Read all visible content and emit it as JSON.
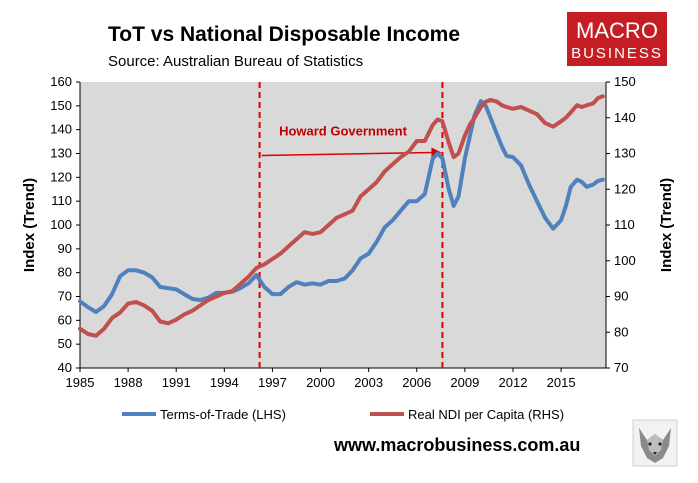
{
  "chart_data": {
    "type": "line",
    "title": "ToT vs National Disposable Income",
    "subtitle": "Source: Australian Bureau of Statistics",
    "ylabel_left": "Index (Trend)",
    "ylabel_right": "Index (Trend)",
    "xlim": [
      1985,
      2017.8
    ],
    "ylim_left": [
      40,
      160
    ],
    "ylim_right": [
      70,
      150
    ],
    "x_ticks": [
      "1985",
      "1988",
      "1991",
      "1994",
      "1997",
      "2000",
      "2003",
      "2006",
      "2009",
      "2012",
      "2015"
    ],
    "y_ticks_left": [
      "40",
      "50",
      "60",
      "70",
      "80",
      "90",
      "100",
      "110",
      "120",
      "130",
      "140",
      "150",
      "160"
    ],
    "y_ticks_right": [
      "70",
      "80",
      "90",
      "100",
      "110",
      "120",
      "130",
      "140",
      "150"
    ],
    "grid": false,
    "legend_position": "bottom",
    "series": [
      {
        "name": "Terms-of-Trade (LHS)",
        "axis": "left",
        "color": "#4f81bd",
        "x": [
          1985,
          1985.5,
          1986,
          1986.5,
          1987,
          1987.5,
          1988,
          1988.5,
          1989,
          1989.5,
          1990,
          1990.5,
          1991,
          1991.5,
          1992,
          1992.5,
          1993,
          1993.5,
          1994,
          1994.5,
          1995,
          1995.5,
          1996,
          1996.5,
          1997,
          1997.5,
          1998,
          1998.5,
          1999,
          1999.5,
          2000,
          2000.5,
          2001,
          2001.5,
          2002,
          2002.5,
          2003,
          2003.5,
          2004,
          2004.5,
          2005,
          2005.5,
          2006,
          2006.5,
          2007,
          2007.3,
          2007.6,
          2008,
          2008.3,
          2008.6,
          2009,
          2009.3,
          2009.6,
          2010,
          2010.3,
          2010.6,
          2011,
          2011.3,
          2011.6,
          2012,
          2012.5,
          2013,
          2013.5,
          2014,
          2014.5,
          2015,
          2015.3,
          2015.6,
          2016,
          2016.3,
          2016.6,
          2017,
          2017.3,
          2017.6
        ],
        "values": [
          68,
          65.5,
          63.5,
          66,
          71,
          78.5,
          81,
          81,
          80,
          78,
          74,
          73.5,
          73,
          71,
          69,
          68.5,
          69.5,
          71.5,
          71.5,
          72,
          73.5,
          75.5,
          79,
          74,
          71,
          71,
          74,
          76,
          75,
          75.5,
          75,
          76.5,
          76.5,
          77.5,
          81,
          86,
          88,
          93,
          99,
          102,
          106,
          110,
          110,
          113,
          128,
          130,
          128,
          115,
          108,
          112,
          128,
          137,
          146,
          152,
          150,
          145,
          138,
          133,
          129,
          128.5,
          125,
          117,
          110,
          103,
          98.5,
          102,
          108,
          116,
          119,
          118,
          116,
          117,
          118.5,
          119
        ]
      },
      {
        "name": "Real NDI per Capita (RHS)",
        "axis": "right",
        "color": "#c0504d",
        "x": [
          1985,
          1985.5,
          1986,
          1986.5,
          1987,
          1987.5,
          1988,
          1988.5,
          1989,
          1989.5,
          1990,
          1990.5,
          1991,
          1991.5,
          1992,
          1992.5,
          1993,
          1993.5,
          1994,
          1994.5,
          1995,
          1995.5,
          1996,
          1996.5,
          1997,
          1997.5,
          1998,
          1998.5,
          1999,
          1999.5,
          2000,
          2000.5,
          2001,
          2001.5,
          2002,
          2002.5,
          2003,
          2003.5,
          2004,
          2004.5,
          2005,
          2005.5,
          2006,
          2006.5,
          2007,
          2007.3,
          2007.6,
          2008,
          2008.3,
          2008.6,
          2009,
          2009.3,
          2009.6,
          2010,
          2010.3,
          2010.6,
          2011,
          2011.3,
          2011.6,
          2012,
          2012.5,
          2013,
          2013.5,
          2014,
          2014.5,
          2015,
          2015.3,
          2015.6,
          2016,
          2016.3,
          2016.6,
          2017,
          2017.3,
          2017.6
        ],
        "values": [
          81,
          79.5,
          79,
          81,
          84,
          85.5,
          88,
          88.5,
          87.5,
          86,
          83,
          82.5,
          83.5,
          85,
          86,
          87.5,
          89,
          90,
          91,
          91.5,
          93.5,
          95.5,
          98,
          99,
          100.5,
          102,
          104,
          106,
          108,
          107.5,
          108,
          110,
          112,
          113,
          114,
          118,
          120,
          122,
          125,
          127,
          129,
          130.5,
          133.5,
          133.5,
          138,
          139.5,
          139,
          133,
          129,
          130,
          135,
          138,
          140,
          143,
          144.5,
          145,
          144.5,
          143.5,
          143,
          142.5,
          143,
          142,
          141,
          138.5,
          137.5,
          139,
          140,
          141.5,
          143.5,
          143,
          143.5,
          144,
          145.5,
          146
        ]
      }
    ],
    "annotations": [
      {
        "text": "Howard Government",
        "type": "period",
        "start": 1996.2,
        "end": 2007.6,
        "arrow_level_left": 130
      }
    ]
  },
  "branding": {
    "logo_line1": "MACRO",
    "logo_line2": "BUSINESS",
    "logo_color": "#c41e24",
    "website": "www.macrobusiness.com.au",
    "wolf_icon": "wolf-icon"
  },
  "colors": {
    "plot_background": "#d9d9d9",
    "annotation": "#e00000"
  }
}
